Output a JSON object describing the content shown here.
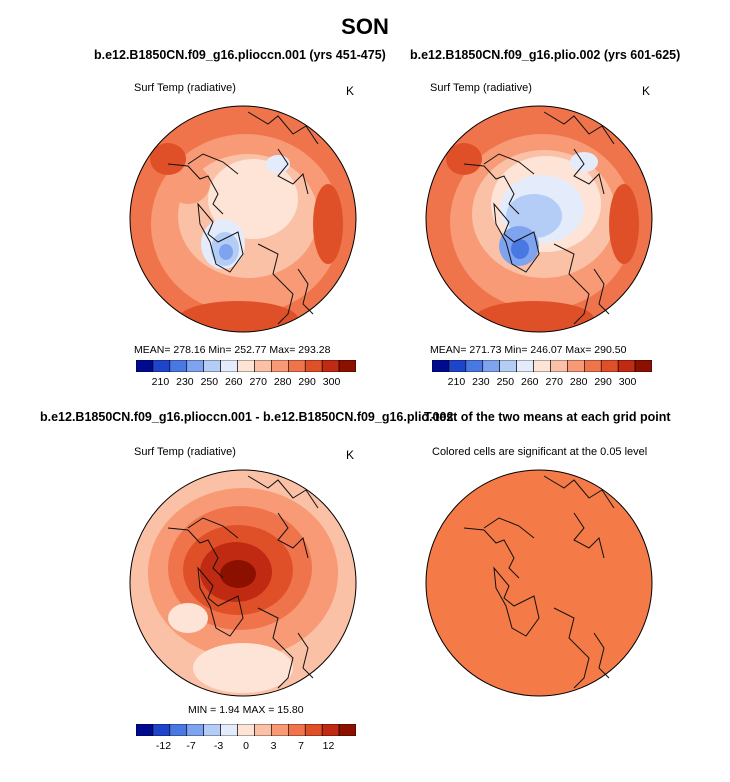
{
  "title": "SON",
  "colors": {
    "abs_scale": [
      "#000a8e",
      "#1f44cc",
      "#4a78e2",
      "#7fa4ef",
      "#b3cdf7",
      "#e4ecfc",
      "#fde4d6",
      "#fbc1a6",
      "#f79a75",
      "#f0744b",
      "#e05028",
      "#c02a12",
      "#8c1000"
    ],
    "diff_scale": [
      "#000a8e",
      "#1f44cc",
      "#4a78e2",
      "#7fa4ef",
      "#b3cdf7",
      "#e4ecfc",
      "#fde4d6",
      "#fbc1a6",
      "#f79a75",
      "#f0744b",
      "#e05028",
      "#c02a12",
      "#8c1000"
    ],
    "signif": "#f47b47"
  },
  "panels": {
    "p1": {
      "title": "b.e12.B1850CN.f09_g16.pliocсn.001 (yrs 451-475)",
      "left_label": "Surf Temp (radiative)",
      "units": "K",
      "stats": "MEAN= 278.16   Min= 252.77   Max= 293.28",
      "ticks": [
        "210",
        "230",
        "250",
        "260",
        "270",
        "280",
        "290",
        "300"
      ]
    },
    "p2": {
      "title": "b.e12.B1850CN.f09_g16.plio.002 (yrs 601-625)",
      "left_label": "Surf Temp (radiative)",
      "units": "K",
      "stats": "MEAN= 271.73   Min= 246.07   Max= 290.50",
      "ticks": [
        "210",
        "230",
        "250",
        "260",
        "270",
        "280",
        "290",
        "300"
      ]
    },
    "p3": {
      "title": "b.e12.B1850CN.f09_g16.pliocсn.001 - b.e12.B1850CN.f09_g16.plio.002",
      "left_label": "Surf Temp (radiative)",
      "units": "K",
      "stats": "MIN =    1.94  MAX =   15.80",
      "ticks": [
        "-12",
        "-7",
        "-3",
        "0",
        "3",
        "7",
        "12"
      ]
    },
    "p4": {
      "title": "T-test of the two means at each grid point",
      "left_label": "Colored cells are significant at the 0.05 level"
    }
  }
}
